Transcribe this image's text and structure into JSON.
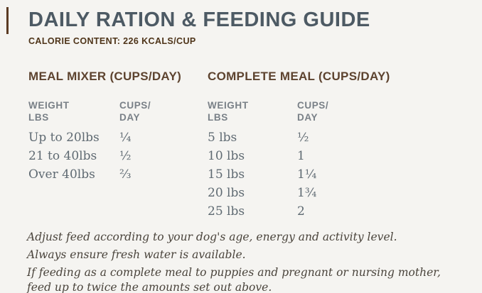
{
  "page": {
    "background": "#f5f4f1",
    "accent_color": "#5b3b23",
    "title_color": "#4d5a64",
    "heading_brown": "#5d432f",
    "column_header_gray": "#798087",
    "body_text_gray": "#5f6a72"
  },
  "header": {
    "title": "DAILY RATION & FEEDING GUIDE",
    "calorie_content": "CALORIE CONTENT: 226 KCALS/CUP"
  },
  "tables": [
    {
      "title": "MEAL MIXER (CUPS/DAY)",
      "col_weight": "WEIGHT\nLBS",
      "col_cups": "CUPS/\nDAY",
      "rows": [
        {
          "weight": "Up to 20lbs",
          "cups": "¼"
        },
        {
          "weight": "21 to 40lbs",
          "cups": "½"
        },
        {
          "weight": "Over 40lbs",
          "cups": "⅔"
        }
      ]
    },
    {
      "title": "COMPLETE MEAL (CUPS/DAY)",
      "col_weight": "WEIGHT\nLBS",
      "col_cups": "CUPS/\nDAY",
      "rows": [
        {
          "weight": "5 lbs",
          "cups": "½"
        },
        {
          "weight": "10 lbs",
          "cups": "1"
        },
        {
          "weight": "15 lbs",
          "cups": "1¼"
        },
        {
          "weight": "20 lbs",
          "cups": "1¾"
        },
        {
          "weight": "25 lbs",
          "cups": "2"
        }
      ]
    }
  ],
  "notes": [
    "Adjust feed according to your dog's age, energy and activity level.",
    "Always ensure fresh water is available.",
    "If feeding as a complete meal to puppies and pregnant or nursing mother, feed up to twice the amounts set out above."
  ]
}
